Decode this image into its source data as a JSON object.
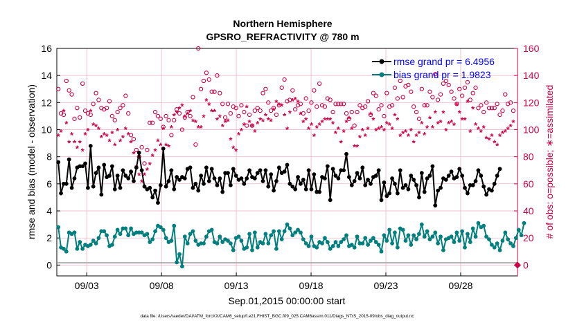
{
  "chart_data": {
    "type": "line",
    "title": "Northern Hemisphere",
    "subtitle": "GPSRO_REFRACTIVITY @ 780 m",
    "xlabel": "Sep.01,2015 00:00:00 start",
    "ylabel": "rmse and bias (model - observation)",
    "ylabel_right": "# of obs: o=possible; ∗=assimilated",
    "xlim": [
      1.0,
      31.8
    ],
    "ylim": [
      -0.8,
      16
    ],
    "ylim_right": [
      -8,
      160
    ],
    "xtick_labels": [
      "09/03",
      "09/08",
      "09/13",
      "09/18",
      "09/23",
      "09/28"
    ],
    "xtick_values": [
      3,
      8,
      13,
      18,
      23,
      28
    ],
    "ytick_labels": [
      "0",
      "2",
      "4",
      "6",
      "8",
      "10",
      "12",
      "14",
      "16"
    ],
    "ytick_values": [
      0,
      2,
      4,
      6,
      8,
      10,
      12,
      14,
      16
    ],
    "ytick_right_labels": [
      "0",
      "20",
      "40",
      "60",
      "80",
      "100",
      "120",
      "140",
      "160"
    ],
    "ytick_right_values": [
      0,
      20,
      40,
      60,
      80,
      100,
      120,
      140,
      160
    ],
    "grid": true,
    "legend_position": "top-right",
    "footer": "data file: /Users/raeder/DAI/ATM_forcXX/CAM6_setup/f.e21.FHIST_BGC.f09_025.CAM6assim.011/Diags_NTrS_2015-09/obs_diag_output.nc",
    "series": [
      {
        "name": "rmse grand pr = 6.4956",
        "color": "#000000",
        "axis": "left",
        "values": [
          7.6,
          5.3,
          6.0,
          6.0,
          7.8,
          5.7,
          6.4,
          7.2,
          7.3,
          7.3,
          7.5,
          5.7,
          8.8,
          5.8,
          6.8,
          7.2,
          5.2,
          7.4,
          6.5,
          6.6,
          7.3,
          5.6,
          6.6,
          5.7,
          7.0,
          6.6,
          6.4,
          6.9,
          6.2,
          7.2,
          8.3,
          7.0,
          5.8,
          5.6,
          5.7,
          5.0,
          5.5,
          4.6,
          5.9,
          8.6,
          5.8,
          6.2,
          7.0,
          5.6,
          6.5,
          6.3,
          6.5,
          6.4,
          7.1,
          7.2,
          5.7,
          6.0,
          5.5,
          6.6,
          6.0,
          7.2,
          6.2,
          7.1,
          6.4,
          5.9,
          6.4,
          5.4,
          6.8,
          6.8,
          5.9,
          7.1,
          6.6,
          6.3,
          6.4,
          6.0,
          6.4,
          7.0,
          6.5,
          6.4,
          6.8,
          7.0,
          6.2,
          7.0,
          5.8,
          6.7,
          5.5,
          6.2,
          7.2,
          6.8,
          6.9,
          7.4,
          6.0,
          5.8,
          5.6,
          6.5,
          6.0,
          6.3,
          5.6,
          7.0,
          5.6,
          6.7,
          5.4,
          5.4,
          6.5,
          6.4,
          7.3,
          4.8,
          7.1,
          6.6,
          6.4,
          7.0,
          7.0,
          8.2,
          6.5,
          5.9,
          6.2,
          6.8,
          6.4,
          7.2,
          5.9,
          6.3,
          6.0,
          6.5,
          6.6,
          7.0,
          4.8,
          6.1,
          5.1,
          5.3,
          6.4,
          6.0,
          5.3,
          7.0,
          5.7,
          5.9,
          5.6,
          6.6,
          6.3,
          5.9,
          5.0,
          6.8,
          5.4,
          6.4,
          6.6,
          7.3,
          4.4,
          5.5,
          5.7,
          6.4,
          6.3,
          6.6,
          6.9,
          6.4,
          6.5,
          7.1,
          6.6,
          5.7,
          5.3,
          5.9,
          5.9,
          6.2,
          7.0,
          6.6,
          5.8,
          5.2,
          5.6,
          5.5,
          6.0,
          6.6,
          7.1
        ]
      },
      {
        "name": "bias grand pr = 1.9823",
        "color": "#007f7f",
        "axis": "left",
        "values": [
          2.8,
          1.3,
          1.2,
          1.0,
          2.4,
          2.3,
          2.4,
          1.2,
          1.7,
          1.2,
          1.5,
          1.4,
          1.5,
          1.8,
          1.6,
          2.0,
          2.5,
          2.5,
          2.2,
          1.4,
          1.5,
          2.1,
          2.6,
          2.3,
          2.7,
          2.7,
          2.2,
          2.7,
          2.3,
          2.4,
          2.4,
          2.4,
          2.2,
          2.3,
          1.7,
          1.9,
          2.5,
          2.9,
          2.8,
          2.6,
          2.0,
          1.7,
          1.8,
          2.9,
          0.2,
          0.8,
          -0.1,
          2.1,
          1.6,
          2.3,
          2.5,
          1.8,
          1.5,
          1.6,
          1.6,
          2.1,
          2.5,
          2.6,
          1.7,
          1.6,
          2.1,
          1.7,
          1.9,
          1.8,
          1.6,
          1.1,
          2.0,
          2.1,
          1.8,
          1.2,
          1.3,
          2.3,
          1.1,
          2.4,
          1.3,
          1.7,
          1.6,
          2.3,
          1.6,
          2.2,
          2.5,
          1.2,
          2.5,
          1.9,
          2.5,
          3.0,
          2.7,
          2.2,
          2.4,
          2.6,
          2.4,
          1.9,
          1.6,
          1.4,
          2.1,
          1.4,
          1.3,
          1.7,
          1.6,
          2.0,
          1.7,
          1.2,
          1.4,
          1.7,
          1.4,
          1.7,
          1.9,
          2.2,
          1.4,
          1.5,
          1.3,
          2.1,
          1.6,
          1.6,
          2.0,
          1.5,
          1.8,
          2.0,
          1.7,
          1.5,
          1.0,
          2.2,
          1.8,
          2.6,
          1.6,
          2.4,
          1.3,
          2.7,
          2.6,
          1.8,
          2.2,
          1.5,
          2.2,
          1.9,
          2.3,
          3.0,
          2.1,
          2.5,
          1.9,
          2.1,
          2.4,
          1.6,
          2.1,
          1.1,
          1.9,
          2.0,
          2.1,
          1.7,
          2.4,
          1.8,
          2.5,
          1.3,
          2.3,
          1.7,
          2.7,
          2.1,
          3.1,
          2.8,
          2.9,
          2.1,
          1.9,
          1.5,
          1.3,
          1.6,
          1.1,
          1.8,
          2.4,
          1.9,
          1.6,
          1.4,
          2.0,
          2.6,
          2.2,
          3.1
        ]
      },
      {
        "name": "# of obs possible",
        "color": "#cc0044",
        "axis": "right",
        "marker": "o",
        "values": [
          130,
          112,
          111,
          136,
          129,
          126,
          108,
          116,
          109,
          134,
          114,
          112,
          111,
          119,
          127,
          122,
          116,
          115,
          116,
          121,
          110,
          107,
          113,
          116,
          118,
          125,
          112,
          96,
          93,
          85,
          80,
          87,
          75,
          85,
          105,
          105,
          113,
          110,
          108,
          102,
          110,
          107,
          96,
          107,
          115,
          112,
          100,
          109,
          113,
          110,
          124,
          89,
          160,
          130,
          136,
          142,
          137,
          128,
          128,
          140,
          127,
          119,
          109,
          119,
          112,
          117,
          116,
          110,
          118,
          113,
          103,
          111,
          103,
          114,
          116,
          114,
          127,
          130,
          120,
          114,
          116,
          111,
          118,
          131,
          137,
          121,
          122,
          129,
          115,
          118,
          119,
          112,
          123,
          114,
          120,
          129,
          117,
          134,
          118,
          117,
          123,
          122,
          113,
          119,
          119,
          119,
          119,
          112,
          108,
          113,
          103,
          113,
          118,
          116,
          117,
          121,
          111,
          127,
          125,
          115,
          118,
          110,
          127,
          117,
          118,
          131,
          123,
          136,
          124,
          132,
          133,
          128,
          117,
          113,
          108,
          130,
          118,
          118,
          128,
          124,
          141,
          122,
          126,
          134,
          136,
          133,
          128,
          123,
          119,
          130,
          125,
          131,
          135,
          122,
          127,
          131,
          116,
          118,
          113,
          120,
          116,
          116,
          116,
          119,
          111,
          114,
          126,
          119,
          120,
          114
        ]
      },
      {
        "name": "# of obs assimilated",
        "color": "#cc0044",
        "axis": "right",
        "marker": "*",
        "values": [
          95,
          98,
          113,
          104,
          90,
          96,
          90,
          86,
          90,
          84,
          96,
          99,
          113,
          103,
          102,
          100,
          94,
          96,
          95,
          91,
          97,
          88,
          99,
          91,
          94,
          100,
          96,
          90,
          82,
          72,
          66,
          61,
          66,
          70,
          74,
          80,
          84,
          91,
          88,
          100,
          88,
          87,
          101,
          110,
          112,
          115,
          117,
          109,
          111,
          113,
          106,
          105,
          101,
          101,
          109,
          121,
          118,
          113,
          113,
          107,
          109,
          102,
          105,
          106,
          92,
          86,
          84,
          96,
          99,
          103,
          116,
          105,
          102,
          98,
          104,
          107,
          106,
          110,
          107,
          106,
          114,
          120,
          118,
          117,
          110,
          100,
          112,
          121,
          122,
          120,
          111,
          105,
          107,
          100,
          103,
          95,
          101,
          103,
          105,
          107,
          107,
          107,
          104,
          97,
          100,
          90,
          98,
          105,
          108,
          100,
          87,
          87,
          94,
          99,
          95,
          100,
          111,
          107,
          99,
          100,
          101,
          99,
          104,
          103,
          100,
          110,
          107,
          95,
          97,
          98,
          95,
          99,
          90,
          95,
          97,
          104,
          96,
          101,
          108,
          101,
          112,
          104,
          105,
          112,
          99,
          104,
          105,
          103,
          118,
          112,
          107,
          107,
          120,
          98,
          115,
          103,
          100,
          98,
          101,
          93,
          92,
          95,
          90,
          88,
          95,
          97,
          98,
          100,
          102,
          105
        ]
      }
    ]
  }
}
